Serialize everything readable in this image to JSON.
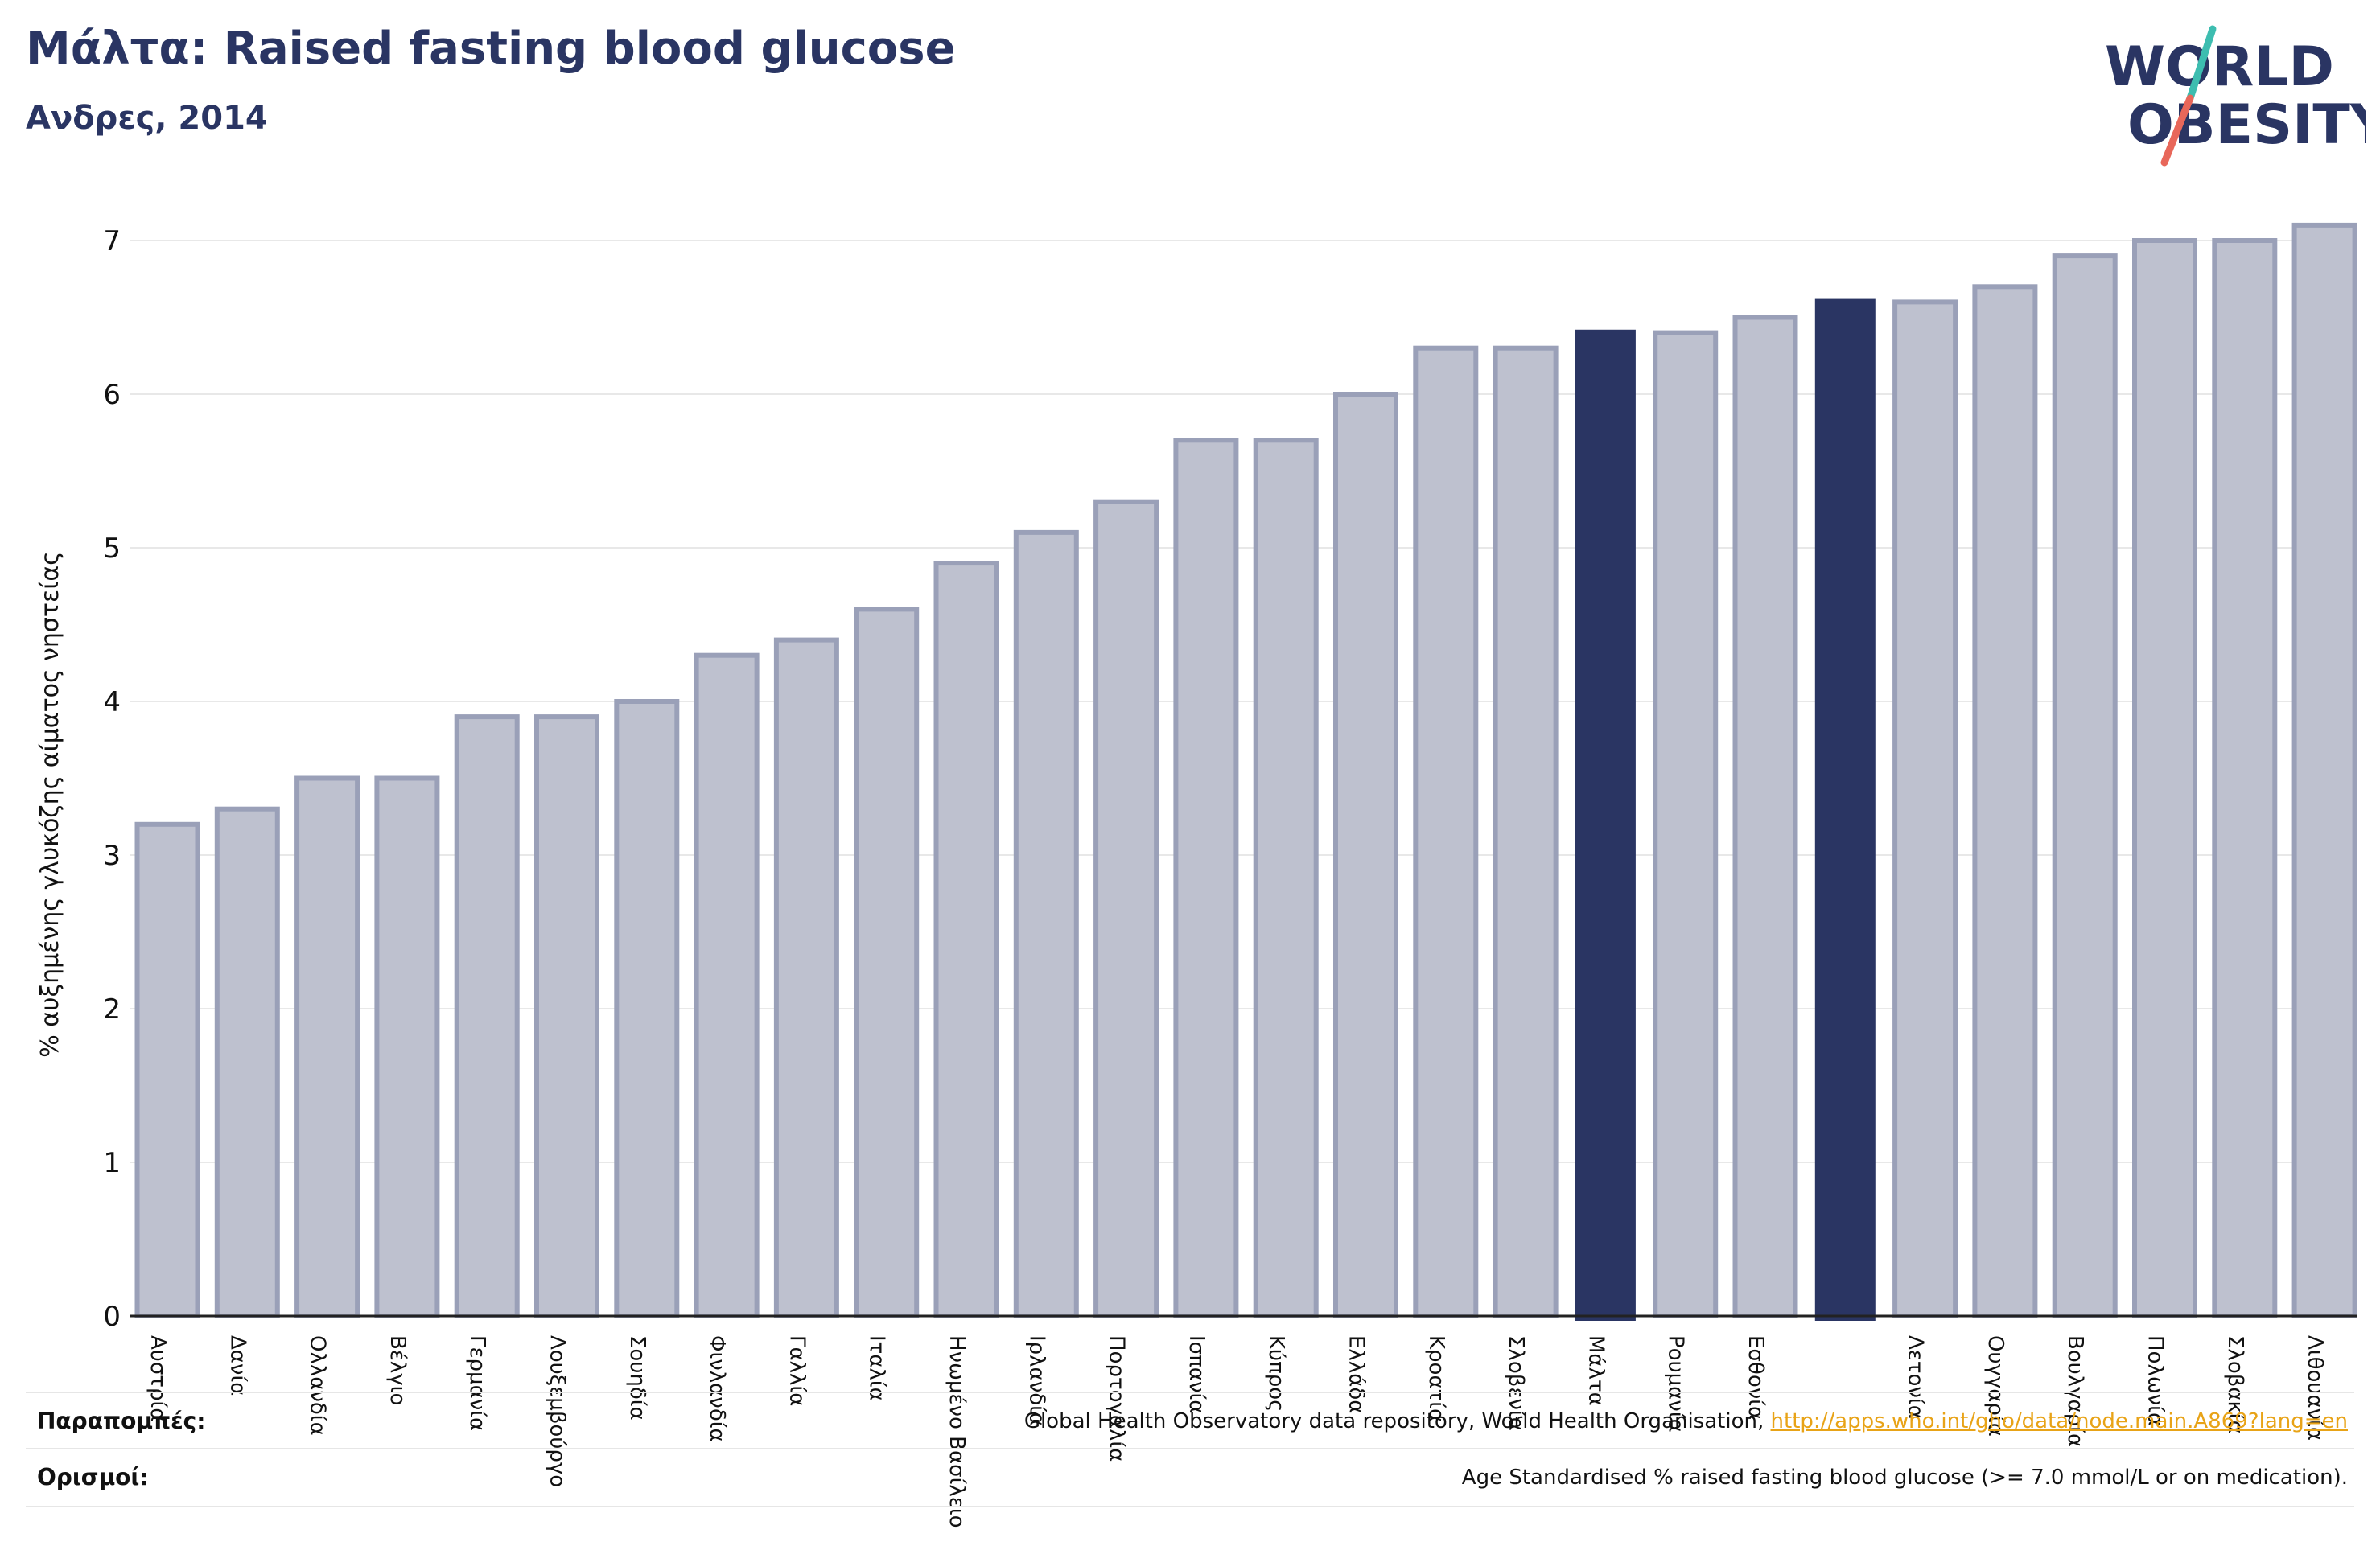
{
  "header": {
    "title": "Μάλτα: Raised fasting blood glucose",
    "subtitle": "Ανδρες, 2014"
  },
  "logo": {
    "line1": "WORLD",
    "line2": "OBESITY"
  },
  "colors": {
    "highlight": "#2a3563",
    "bar_fill": "#bec1cf",
    "bar_stroke": "#9aa0b8",
    "accent_teal": "#3dbdb0",
    "accent_red": "#e8675a",
    "link": "#e8a317"
  },
  "chart_data": {
    "type": "bar",
    "ylabel": "% αυξημένης γλυκόζης αίματος νηστείας",
    "ylim": [
      0,
      7.2
    ],
    "yticks": [
      0,
      1,
      2,
      3,
      4,
      5,
      6,
      7
    ],
    "grid": true,
    "categories": [
      "Αυστρία",
      "Δανία",
      "Ολλανδία",
      "Βέλγιο",
      "Γερμανία",
      "Λουξεμβούργο",
      "Σουηδία",
      "Φινλανδία",
      "Γαλλία",
      "Ιταλία",
      "Ηνωμένο Βασίλειο",
      "Ιρλανδία",
      "Πορτογαλία",
      "Ισπανία",
      "Κύπρος",
      "Ελλάδα",
      "Κροατία",
      "Σλοβενία",
      "Μάλτα",
      "Ρουμανία",
      "Εσθονία",
      "",
      "Λετονία",
      "Ουγγαρία",
      "Βουλγαρία",
      "Πολωνία",
      "Σλοβακία",
      "Λιθουανία"
    ],
    "values": [
      3.2,
      3.3,
      3.5,
      3.5,
      3.9,
      3.9,
      4.0,
      4.3,
      4.4,
      4.6,
      4.9,
      5.1,
      5.3,
      5.7,
      5.7,
      6.0,
      6.3,
      6.3,
      6.42,
      6.4,
      6.5,
      6.62,
      6.6,
      6.7,
      6.9,
      7.0,
      7.0,
      7.1
    ],
    "highlighted": [
      18,
      21
    ]
  },
  "footer": {
    "references_label": "Παραπομπές:",
    "references_text": "Global Health Observatory data repository, World Health Organisation, ",
    "references_link": "http://apps.who.int/gho/data/node.main.A869?lang=en",
    "definitions_label": "Ορισμοί:",
    "definitions_text": "Age Standardised % raised fasting blood glucose (>= 7.0 mmol/L or on medication)."
  }
}
